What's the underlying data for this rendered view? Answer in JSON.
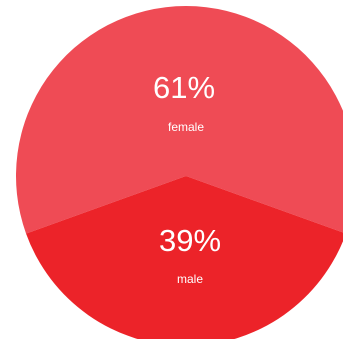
{
  "chart_data": {
    "type": "pie",
    "slices": [
      {
        "label": "female",
        "value": 61,
        "percent_text": "61%",
        "color": "#EF4B55"
      },
      {
        "label": "male",
        "value": 39,
        "percent_text": "39%",
        "color": "#EC2329"
      }
    ],
    "title": "",
    "legend": "none"
  }
}
